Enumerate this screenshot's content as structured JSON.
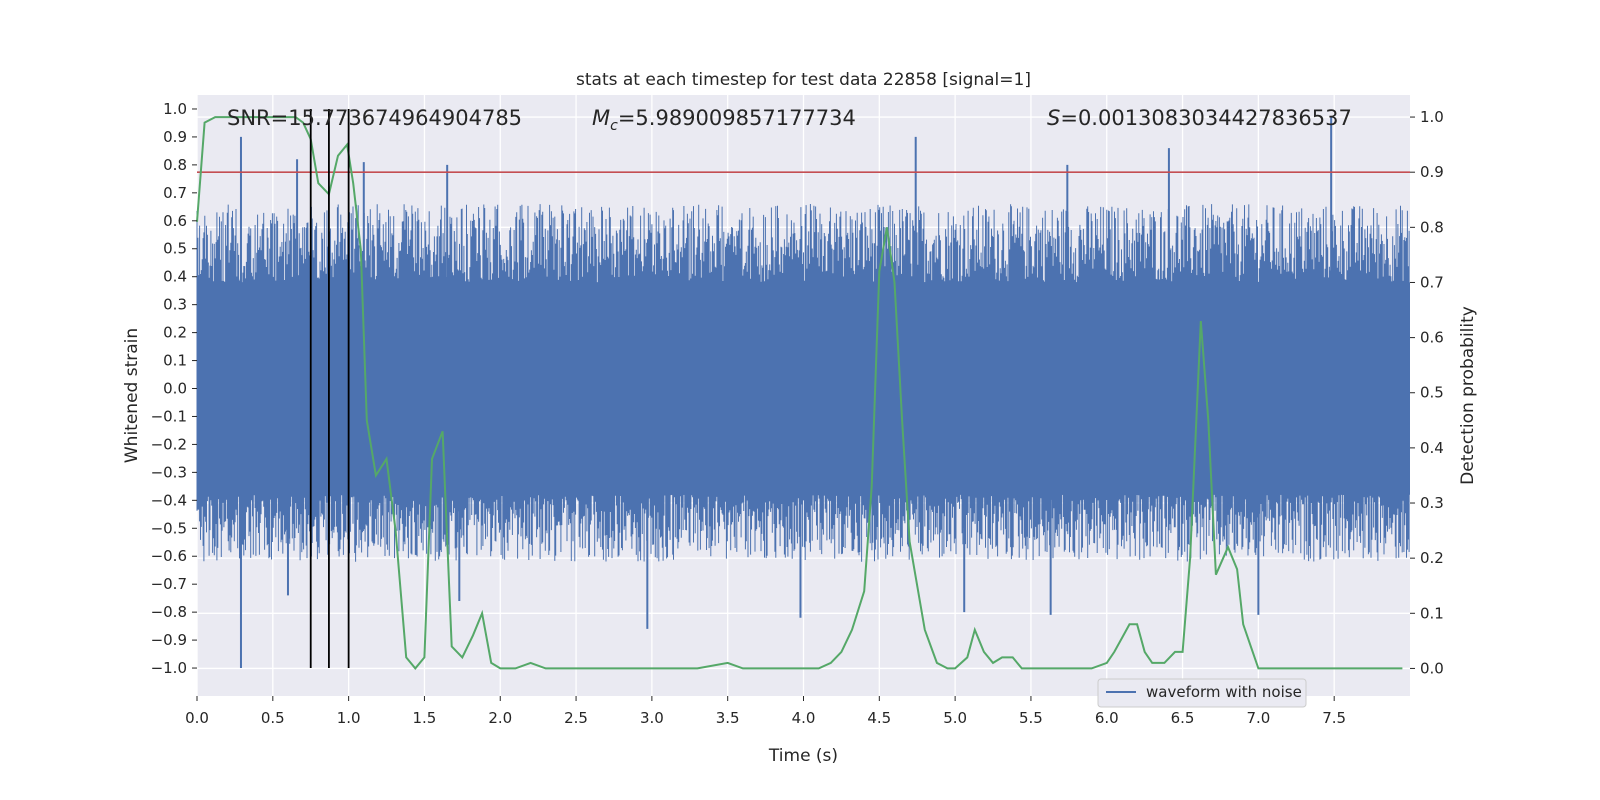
{
  "chart_data": {
    "type": "line",
    "title": "stats at each timestep for test data 22858 [signal=1]",
    "xlabel": "Time (s)",
    "ylabel_left": "Whitened strain",
    "ylabel_right": "Detection probability",
    "xlim": [
      0,
      8.0
    ],
    "ylim_left": [
      -1.1,
      1.05
    ],
    "ylim_right": [
      -0.05,
      1.04
    ],
    "x_ticks": [
      "0.0",
      "0.5",
      "1.0",
      "1.5",
      "2.0",
      "2.5",
      "3.0",
      "3.5",
      "4.0",
      "4.5",
      "5.0",
      "5.5",
      "6.0",
      "6.5",
      "7.0",
      "7.5"
    ],
    "y_ticks_left": [
      "1.0",
      "0.9",
      "0.8",
      "0.7",
      "0.6",
      "0.5",
      "0.4",
      "0.3",
      "0.2",
      "0.1",
      "0.0",
      "-0.1",
      "-0.2",
      "-0.3",
      "-0.4",
      "-0.5",
      "-0.6",
      "-0.7",
      "-0.8",
      "-0.9",
      "-1.0"
    ],
    "y_ticks_right": [
      "1.0",
      "0.9",
      "0.8",
      "0.7",
      "0.6",
      "0.5",
      "0.4",
      "0.3",
      "0.2",
      "0.1",
      "0.0"
    ],
    "grid": true,
    "background": "#eaeaf2",
    "legend": {
      "position": "bottom-right",
      "entries": [
        {
          "label": "waveform with noise",
          "color": "#4c72b0"
        }
      ]
    },
    "annotations": {
      "snr": "SNR=15.773674964904785",
      "mc_symbol": "M",
      "mc_sub": "c",
      "mc_value": "=5.989009857177734",
      "s_symbol": "S",
      "s_value": "=0.0013083034427836537"
    },
    "series": [
      {
        "name": "waveform with noise",
        "axis": "left",
        "color": "#4c72b0",
        "style": "dense-noise",
        "band_low": -0.4,
        "band_high": 0.4,
        "spikes": [
          {
            "x": 0.29,
            "y": 0.9
          },
          {
            "x": 0.29,
            "y": -1.0
          },
          {
            "x": 0.66,
            "y": 0.82
          },
          {
            "x": 1.1,
            "y": 0.81
          },
          {
            "x": 1.65,
            "y": 0.8
          },
          {
            "x": 4.74,
            "y": 0.9
          },
          {
            "x": 5.74,
            "y": 0.8
          },
          {
            "x": 6.41,
            "y": 0.86
          },
          {
            "x": 7.48,
            "y": 0.97
          },
          {
            "x": 2.97,
            "y": -0.86
          },
          {
            "x": 3.98,
            "y": -0.82
          },
          {
            "x": 5.06,
            "y": -0.8
          },
          {
            "x": 5.63,
            "y": -0.81
          },
          {
            "x": 7.0,
            "y": -0.81
          },
          {
            "x": 0.6,
            "y": -0.74
          },
          {
            "x": 1.73,
            "y": -0.76
          }
        ]
      },
      {
        "name": "",
        "axis": "right",
        "color": "#55a868",
        "x": [
          0.0,
          0.05,
          0.12,
          0.2,
          0.3,
          0.5,
          0.65,
          0.7,
          0.75,
          0.8,
          0.87,
          0.93,
          0.99,
          1.03,
          1.08,
          1.12,
          1.18,
          1.25,
          1.31,
          1.38,
          1.44,
          1.5,
          1.55,
          1.62,
          1.68,
          1.75,
          1.82,
          1.88,
          1.94,
          2.0,
          2.05,
          2.1,
          2.2,
          2.3,
          2.45,
          2.6,
          3.0,
          3.3,
          3.5,
          3.6,
          3.8,
          4.0,
          4.1,
          4.18,
          4.25,
          4.32,
          4.4,
          4.45,
          4.5,
          4.55,
          4.6,
          4.65,
          4.7,
          4.8,
          4.88,
          4.95,
          5.0,
          5.08,
          5.13,
          5.19,
          5.25,
          5.31,
          5.38,
          5.44,
          5.5,
          5.6,
          5.7,
          5.9,
          6.0,
          6.05,
          6.15,
          6.2,
          6.25,
          6.3,
          6.38,
          6.45,
          6.5,
          6.55,
          6.62,
          6.67,
          6.72,
          6.8,
          6.86,
          6.9,
          6.95,
          7.0,
          7.05,
          7.2,
          7.5,
          7.8,
          7.95
        ],
        "y": [
          0.81,
          0.99,
          1.0,
          1.0,
          1.0,
          1.0,
          1.0,
          0.99,
          0.96,
          0.88,
          0.86,
          0.93,
          0.95,
          0.88,
          0.76,
          0.45,
          0.35,
          0.38,
          0.25,
          0.02,
          0.0,
          0.02,
          0.38,
          0.43,
          0.04,
          0.02,
          0.06,
          0.1,
          0.01,
          0.0,
          0.0,
          0.0,
          0.01,
          0.0,
          0.0,
          0.0,
          0.0,
          0.0,
          0.01,
          0.0,
          0.0,
          0.0,
          0.0,
          0.01,
          0.03,
          0.07,
          0.14,
          0.33,
          0.72,
          0.8,
          0.7,
          0.45,
          0.23,
          0.07,
          0.01,
          0.0,
          0.0,
          0.02,
          0.07,
          0.03,
          0.01,
          0.02,
          0.02,
          0.0,
          0.0,
          0.0,
          0.0,
          0.0,
          0.01,
          0.03,
          0.08,
          0.08,
          0.03,
          0.01,
          0.01,
          0.03,
          0.03,
          0.2,
          0.63,
          0.45,
          0.17,
          0.22,
          0.18,
          0.08,
          0.04,
          0.0,
          0.0,
          0.0,
          0.0,
          0.0,
          0.0
        ]
      }
    ],
    "threshold_line": {
      "axis": "right",
      "y": 0.9,
      "color": "#c44e52"
    },
    "vertical_lines": {
      "x": [
        0.75,
        0.87,
        1.0
      ],
      "y_top": 1.0,
      "y_bottom": -1.0,
      "color": "#000000"
    }
  }
}
